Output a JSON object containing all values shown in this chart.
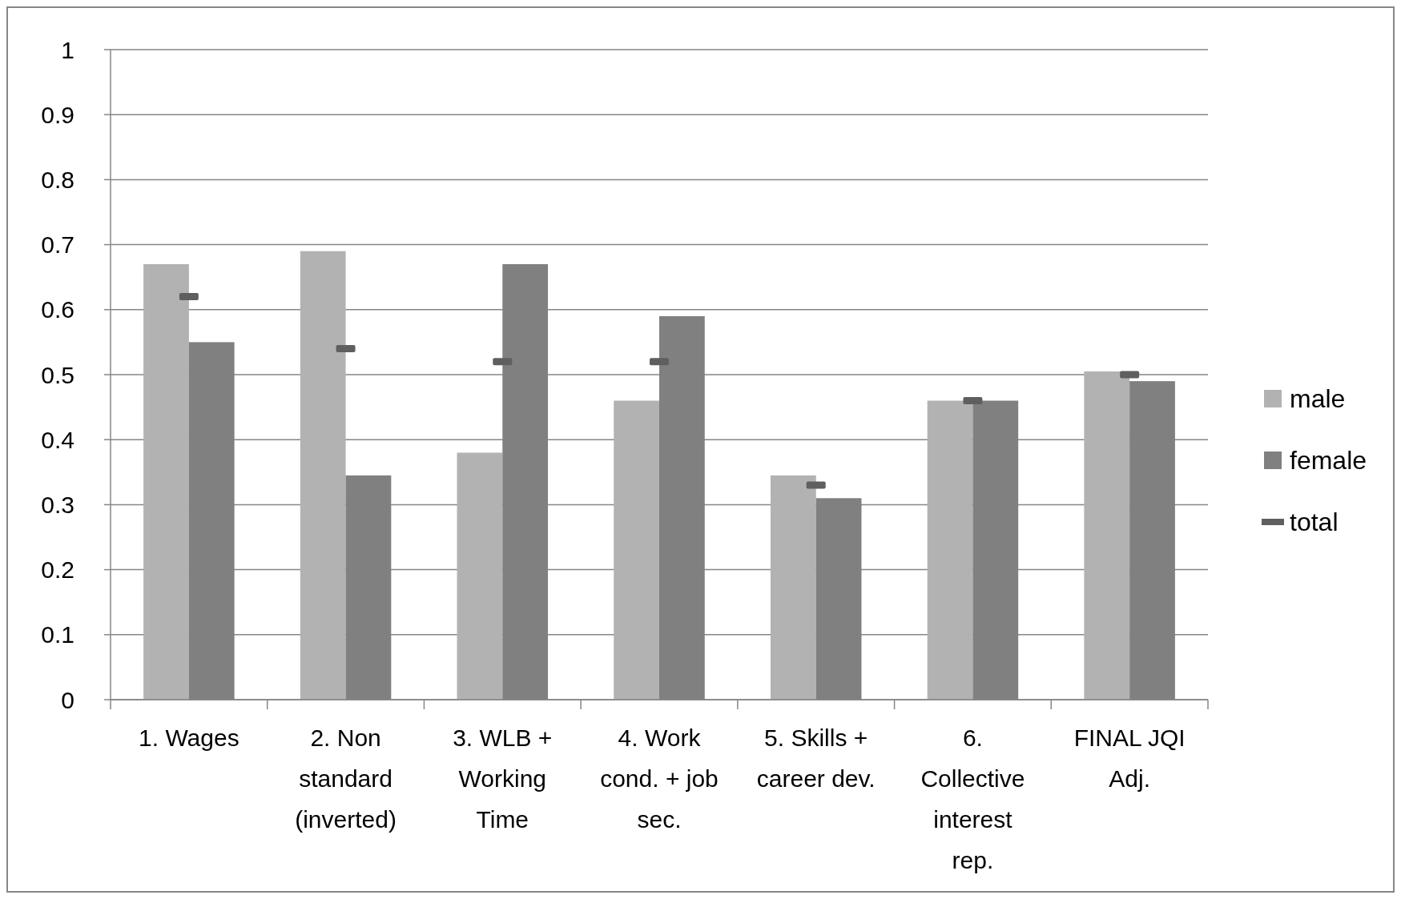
{
  "chart_data": {
    "type": "bar",
    "categories": [
      "1. Wages",
      "2. Non standard (inverted)",
      "3. WLB + Working Time",
      "4. Work cond. + job sec.",
      "5. Skills + career dev.",
      "6. Collective interest rep.",
      "FINAL JQI Adj."
    ],
    "series": [
      {
        "name": "male",
        "color": "#b2b2b2",
        "values": [
          0.67,
          0.69,
          0.38,
          0.46,
          0.345,
          0.46,
          0.505
        ]
      },
      {
        "name": "female",
        "color": "#808080",
        "values": [
          0.55,
          0.345,
          0.67,
          0.59,
          0.31,
          0.46,
          0.49
        ]
      },
      {
        "name": "total",
        "type": "scatter",
        "color": "#5f5f5f",
        "values": [
          0.62,
          0.54,
          0.52,
          0.52,
          0.33,
          0.46,
          0.5
        ]
      }
    ],
    "ylim": [
      0,
      1
    ],
    "yticks": [
      0,
      0.1,
      0.2,
      0.3,
      0.4,
      0.5,
      0.6,
      0.7,
      0.8,
      0.9,
      1
    ],
    "grid": "y",
    "legend": "right"
  }
}
